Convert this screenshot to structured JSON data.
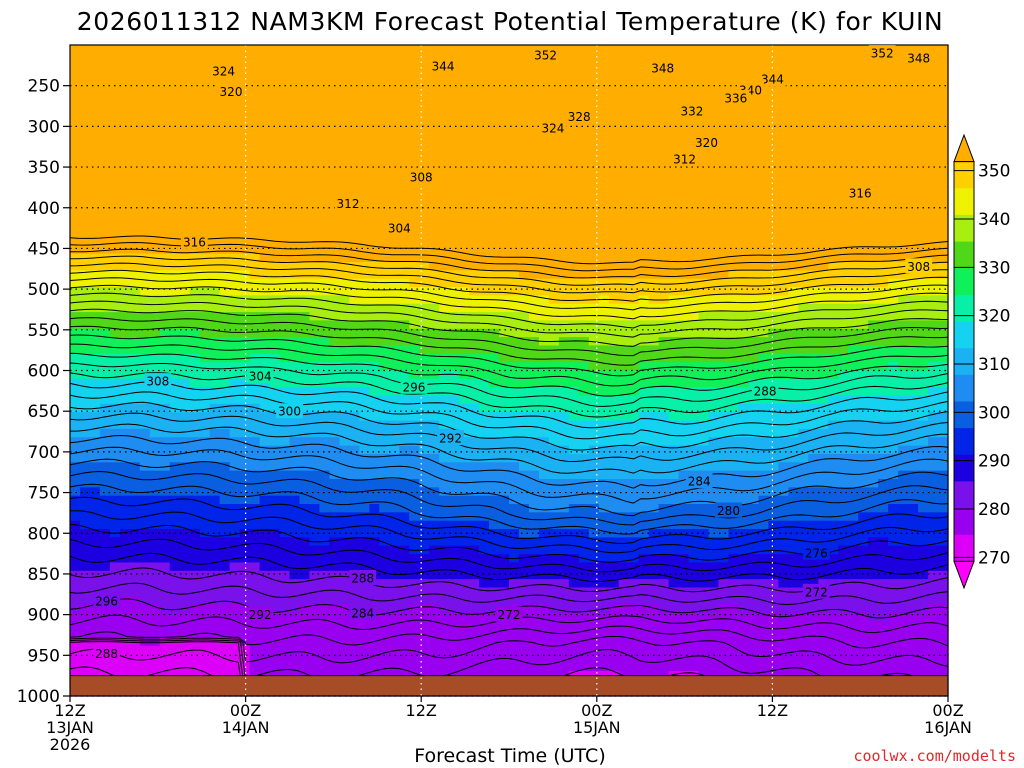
{
  "chart_data": {
    "type": "heatmap",
    "title": "2026011312 NAM3KM Forecast Potential Temperature (K) for KUIN",
    "xlabel": "Forecast Time (UTC)",
    "ylabel": "",
    "credit": "coolwx.com/modelts",
    "units": "K",
    "x_ticks": [
      {
        "hour": 0,
        "line1": "12Z",
        "line2": "13JAN",
        "line3": "2026"
      },
      {
        "hour": 12,
        "line1": "00Z",
        "line2": "14JAN",
        "line3": ""
      },
      {
        "hour": 24,
        "line1": "12Z",
        "line2": "",
        "line3": ""
      },
      {
        "hour": 36,
        "line1": "00Z",
        "line2": "15JAN",
        "line3": ""
      },
      {
        "hour": 48,
        "line1": "12Z",
        "line2": "",
        "line3": ""
      },
      {
        "hour": 60,
        "line1": "00Z",
        "line2": "16JAN",
        "line3": ""
      }
    ],
    "xlim": [
      0,
      60
    ],
    "y_ticks": [
      250,
      300,
      350,
      400,
      450,
      500,
      550,
      600,
      650,
      700,
      750,
      800,
      850,
      900,
      950,
      1000
    ],
    "ylim": [
      200,
      1000
    ],
    "surface_pressure": 975,
    "colorbar": {
      "levels": [
        270,
        280,
        290,
        300,
        310,
        320,
        330,
        340,
        350
      ],
      "bins": [
        {
          "value": 265,
          "color": "#ff00ff"
        },
        {
          "value": 270,
          "color": "#dd00f8"
        },
        {
          "value": 280,
          "color": "#9a00f0"
        },
        {
          "value": 290,
          "color": "#7a10ea"
        },
        {
          "value": 295,
          "color": "#1d00e0"
        },
        {
          "value": 300,
          "color": "#0024e8"
        },
        {
          "value": 305,
          "color": "#0a5ee0"
        },
        {
          "value": 310,
          "color": "#1e8cf0"
        },
        {
          "value": 315,
          "color": "#1ab2f2"
        },
        {
          "value": 320,
          "color": "#14d2f0"
        },
        {
          "value": 325,
          "color": "#08f0a8"
        },
        {
          "value": 330,
          "color": "#10f05a"
        },
        {
          "value": 335,
          "color": "#50d818"
        },
        {
          "value": 340,
          "color": "#a8ee10"
        },
        {
          "value": 345,
          "color": "#eef200"
        },
        {
          "value": 350,
          "color": "#ffd000"
        },
        {
          "value": 355,
          "color": "#ffae00"
        }
      ]
    },
    "ground_color": "#a64d28",
    "contour_labels": [
      {
        "text": "352",
        "hour": 32.5,
        "p": 212
      },
      {
        "text": "352",
        "hour": 55.5,
        "p": 210
      },
      {
        "text": "348",
        "hour": 40.5,
        "p": 228
      },
      {
        "text": "348",
        "hour": 58,
        "p": 216
      },
      {
        "text": "344",
        "hour": 25.5,
        "p": 226
      },
      {
        "text": "344",
        "hour": 48,
        "p": 242
      },
      {
        "text": "340",
        "hour": 46.5,
        "p": 255
      },
      {
        "text": "336",
        "hour": 45.5,
        "p": 265
      },
      {
        "text": "332",
        "hour": 42.5,
        "p": 281
      },
      {
        "text": "328",
        "hour": 34.8,
        "p": 288
      },
      {
        "text": "324",
        "hour": 33,
        "p": 302
      },
      {
        "text": "324",
        "hour": 10.5,
        "p": 232
      },
      {
        "text": "320",
        "hour": 43.5,
        "p": 320
      },
      {
        "text": "320",
        "hour": 11,
        "p": 257
      },
      {
        "text": "316",
        "hour": 54,
        "p": 382
      },
      {
        "text": "316",
        "hour": 8.5,
        "p": 442
      },
      {
        "text": "312",
        "hour": 42,
        "p": 340
      },
      {
        "text": "312",
        "hour": 19,
        "p": 395
      },
      {
        "text": "308",
        "hour": 24,
        "p": 362
      },
      {
        "text": "308",
        "hour": 58,
        "p": 472
      },
      {
        "text": "308",
        "hour": 6,
        "p": 613
      },
      {
        "text": "304",
        "hour": 22.5,
        "p": 425
      },
      {
        "text": "304",
        "hour": 13,
        "p": 607
      },
      {
        "text": "300",
        "hour": 15,
        "p": 650
      },
      {
        "text": "296",
        "hour": 23.5,
        "p": 620
      },
      {
        "text": "296",
        "hour": 2.5,
        "p": 883
      },
      {
        "text": "292",
        "hour": 26,
        "p": 683
      },
      {
        "text": "292",
        "hour": 13,
        "p": 900
      },
      {
        "text": "288",
        "hour": 47.5,
        "p": 625
      },
      {
        "text": "288",
        "hour": 20,
        "p": 855
      },
      {
        "text": "288",
        "hour": 2.5,
        "p": 948
      },
      {
        "text": "284",
        "hour": 43,
        "p": 736
      },
      {
        "text": "284",
        "hour": 20,
        "p": 898
      },
      {
        "text": "280",
        "hour": 45,
        "p": 772
      },
      {
        "text": "276",
        "hour": 51,
        "p": 824
      },
      {
        "text": "272",
        "hour": 51,
        "p": 872
      },
      {
        "text": "272",
        "hour": 30,
        "p": 900
      }
    ]
  }
}
